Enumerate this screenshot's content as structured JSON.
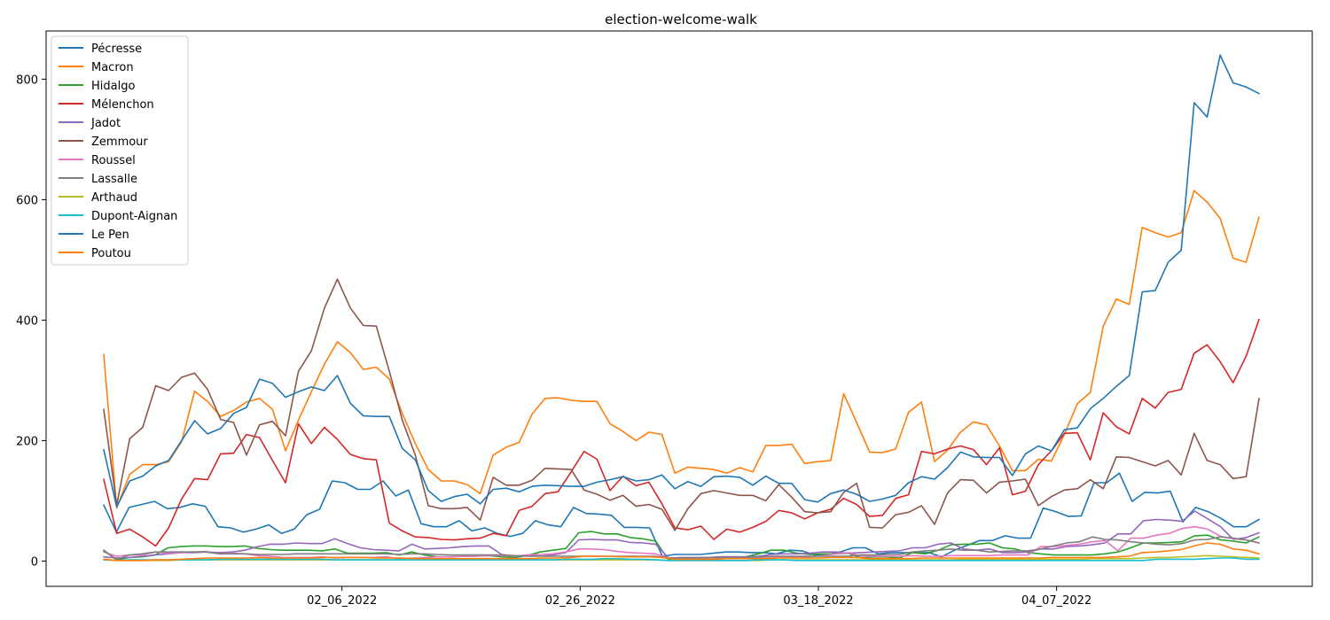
{
  "chart_data": {
    "type": "line",
    "title": "election-welcome-walk",
    "xlabel": "",
    "ylabel": "",
    "x_start": "01_17_2022",
    "x_end": "04_24_2022",
    "x_ticks": [
      {
        "value": "02_06_2022",
        "label": "02_06_2022"
      },
      {
        "value": "02_26_2022",
        "label": "02_26_2022"
      },
      {
        "value": "03_18_2022",
        "label": "03_18_2022"
      },
      {
        "value": "04_07_2022",
        "label": "04_07_2022"
      }
    ],
    "ylim": [
      -42,
      880
    ],
    "y_ticks": [
      0,
      200,
      400,
      600,
      800
    ],
    "grid": false,
    "legend_position": "top-left",
    "series": [
      {
        "name": "Pécresse",
        "color": "#1f77b4",
        "values": [
          93,
          48,
          89,
          94,
          99,
          87,
          89,
          95,
          91,
          57,
          55,
          48,
          53,
          60,
          46,
          53,
          77,
          86,
          133,
          130,
          119,
          119,
          133,
          108,
          118,
          62,
          57,
          57,
          67,
          50,
          55,
          46,
          41,
          46,
          67,
          60,
          57,
          89,
          79,
          78,
          76,
          56,
          56,
          55,
          8,
          11,
          11,
          11,
          13,
          15,
          15,
          14,
          14,
          12,
          18,
          17,
          10,
          11,
          15,
          22,
          22,
          12,
          14,
          14,
          14,
          14,
          7,
          18,
          26,
          34,
          34,
          42,
          38,
          38,
          88,
          82,
          74,
          75,
          130,
          130,
          146,
          99,
          114,
          113,
          116,
          65,
          89,
          82,
          71,
          57,
          57,
          69
        ]
      },
      {
        "name": "Macron",
        "color": "#ff7f0e",
        "values": [
          343,
          88,
          144,
          160,
          160,
          165,
          198,
          282,
          265,
          240,
          250,
          264,
          270,
          252,
          183,
          234,
          281,
          327,
          364,
          346,
          318,
          322,
          302,
          245,
          195,
          152,
          133,
          133,
          127,
          112,
          176,
          189,
          197,
          244,
          270,
          271,
          267,
          265,
          265,
          228,
          215,
          200,
          214,
          210,
          146,
          156,
          154,
          152,
          146,
          155,
          148,
          192,
          192,
          194,
          162,
          165,
          167,
          278,
          230,
          181,
          180,
          186,
          247,
          264,
          165,
          184,
          214,
          231,
          226,
          191,
          150,
          150,
          169,
          166,
          210,
          261,
          280,
          390,
          435,
          426,
          554,
          545,
          538,
          545,
          615,
          596,
          569,
          503,
          496,
          571
        ]
      },
      {
        "name": "Hidalgo",
        "color": "#2ca02c",
        "values": [
          18,
          2,
          6,
          7,
          10,
          22,
          24,
          25,
          25,
          24,
          24,
          25,
          21,
          19,
          18,
          18,
          18,
          17,
          20,
          13,
          13,
          13,
          14,
          10,
          15,
          10,
          7,
          7,
          8,
          8,
          9,
          7,
          6,
          9,
          15,
          18,
          21,
          47,
          49,
          45,
          45,
          39,
          37,
          33,
          2,
          2,
          2,
          5,
          7,
          7,
          7,
          12,
          18,
          18,
          13,
          11,
          12,
          12,
          13,
          5,
          7,
          7,
          5,
          14,
          12,
          18,
          27,
          28,
          28,
          30,
          22,
          20,
          14,
          12,
          10,
          10,
          10,
          10,
          12,
          15,
          22,
          30,
          30,
          31,
          32,
          42,
          43,
          35,
          33,
          30,
          40
        ]
      },
      {
        "name": "Mélenchon",
        "color": "#d62728",
        "values": [
          136,
          46,
          53,
          40,
          25,
          55,
          103,
          137,
          135,
          178,
          179,
          210,
          205,
          167,
          130,
          228,
          195,
          222,
          202,
          177,
          170,
          168,
          63,
          50,
          40,
          39,
          36,
          35,
          37,
          38,
          46,
          42,
          84,
          91,
          112,
          115,
          148,
          182,
          169,
          117,
          141,
          125,
          131,
          95,
          55,
          52,
          58,
          36,
          53,
          48,
          56,
          66,
          84,
          80,
          70,
          80,
          86,
          104,
          94,
          74,
          76,
          104,
          110,
          182,
          178,
          186,
          191,
          185,
          160,
          188,
          110,
          116,
          160,
          183,
          212,
          213,
          168,
          246,
          223,
          211,
          270,
          254,
          280,
          285,
          345,
          359,
          331,
          296,
          340,
          401
        ]
      },
      {
        "name": "Jadot",
        "color": "#9467bd",
        "values": [
          7,
          5,
          6,
          8,
          10,
          12,
          14,
          14,
          15,
          14,
          15,
          18,
          24,
          28,
          28,
          30,
          29,
          29,
          37,
          29,
          22,
          19,
          18,
          17,
          28,
          20,
          21,
          22,
          24,
          25,
          25,
          11,
          8,
          10,
          8,
          10,
          14,
          35,
          36,
          35,
          35,
          31,
          30,
          28,
          5,
          6,
          6,
          6,
          7,
          7,
          7,
          8,
          11,
          12,
          12,
          13,
          15,
          15,
          13,
          14,
          15,
          16,
          17,
          22,
          22,
          28,
          30,
          20,
          18,
          20,
          14,
          14,
          15,
          20,
          20,
          24,
          25,
          27,
          30,
          45,
          45,
          67,
          69,
          68,
          66,
          83,
          70,
          57,
          36,
          39,
          47
        ]
      },
      {
        "name": "Zemmour",
        "color": "#8c564b",
        "values": [
          252,
          93,
          203,
          222,
          291,
          283,
          305,
          312,
          285,
          235,
          230,
          176,
          226,
          232,
          208,
          315,
          349,
          420,
          468,
          420,
          391,
          390,
          315,
          234,
          176,
          92,
          87,
          87,
          89,
          68,
          139,
          126,
          126,
          134,
          154,
          153,
          152,
          118,
          111,
          101,
          109,
          91,
          94,
          86,
          51,
          87,
          112,
          117,
          113,
          109,
          109,
          100,
          127,
          106,
          82,
          80,
          82,
          114,
          129,
          56,
          55,
          77,
          81,
          92,
          61,
          113,
          135,
          134,
          113,
          131,
          133,
          136,
          92,
          107,
          118,
          120,
          135,
          120,
          173,
          172,
          165,
          158,
          167,
          143,
          212,
          167,
          160,
          137,
          140,
          270
        ]
      },
      {
        "name": "Roussel",
        "color": "#e377c2",
        "values": [
          15,
          8,
          10,
          10,
          15,
          13,
          14,
          15,
          16,
          12,
          13,
          12,
          9,
          8,
          6,
          6,
          6,
          7,
          5,
          6,
          6,
          6,
          7,
          4,
          5,
          6,
          7,
          7,
          8,
          8,
          9,
          9,
          8,
          10,
          11,
          12,
          15,
          20,
          20,
          19,
          16,
          14,
          13,
          12,
          5,
          4,
          4,
          4,
          5,
          5,
          5,
          6,
          7,
          7,
          6,
          7,
          9,
          12,
          14,
          8,
          8,
          8,
          8,
          9,
          8,
          8,
          9,
          9,
          9,
          9,
          10,
          10,
          10,
          24,
          24,
          26,
          28,
          32,
          34,
          17,
          38,
          38,
          43,
          46,
          54,
          57,
          53,
          41,
          37,
          35,
          30
        ]
      },
      {
        "name": "Lassalle",
        "color": "#7f7f7f",
        "values": [
          17,
          3,
          10,
          12,
          15,
          15,
          15,
          15,
          15,
          12,
          12,
          12,
          11,
          11,
          11,
          12,
          12,
          12,
          12,
          12,
          12,
          12,
          12,
          11,
          12,
          12,
          11,
          10,
          10,
          10,
          10,
          10,
          9,
          8,
          8,
          8,
          8,
          8,
          8,
          8,
          8,
          8,
          8,
          8,
          5,
          5,
          5,
          6,
          6,
          6,
          6,
          7,
          8,
          8,
          8,
          8,
          8,
          8,
          8,
          10,
          10,
          11,
          11,
          15,
          17,
          18,
          20,
          18,
          18,
          15,
          16,
          17,
          17,
          20,
          25,
          30,
          32,
          40,
          36,
          35,
          32,
          30,
          28,
          27,
          29,
          35,
          36,
          40,
          38,
          35,
          30
        ]
      },
      {
        "name": "Arthaud",
        "color": "#bcbd22",
        "values": [
          3,
          1,
          1,
          1,
          1,
          1,
          2,
          2,
          2,
          2,
          2,
          2,
          2,
          2,
          2,
          2,
          2,
          2,
          2,
          2,
          2,
          2,
          2,
          2,
          2,
          2,
          2,
          2,
          2,
          2,
          2,
          2,
          2,
          2,
          2,
          2,
          2,
          2,
          2,
          2,
          2,
          2,
          2,
          2,
          1,
          1,
          1,
          1,
          1,
          1,
          1,
          1,
          2,
          2,
          2,
          2,
          2,
          2,
          2,
          2,
          2,
          2,
          2,
          2,
          2,
          2,
          2,
          3,
          3,
          3,
          3,
          3,
          3,
          3,
          3,
          3,
          3,
          4,
          4,
          4,
          4,
          5,
          6,
          6,
          7,
          8,
          9,
          8,
          7,
          6,
          5
        ]
      },
      {
        "name": "Dupont-Aignan",
        "color": "#17becf",
        "values": [
          2,
          1,
          2,
          2,
          2,
          2,
          2,
          2,
          2,
          3,
          3,
          3,
          3,
          3,
          3,
          3,
          3,
          3,
          2,
          2,
          2,
          2,
          2,
          2,
          2,
          2,
          2,
          2,
          2,
          2,
          2,
          2,
          2,
          2,
          2,
          2,
          3,
          3,
          3,
          4,
          4,
          3,
          3,
          2,
          1,
          1,
          1,
          1,
          1,
          1,
          1,
          2,
          2,
          2,
          1,
          1,
          1,
          1,
          1,
          1,
          1,
          1,
          1,
          1,
          1,
          1,
          1,
          1,
          1,
          1,
          1,
          1,
          1,
          1,
          1,
          1,
          1,
          1,
          1,
          1,
          1,
          1,
          3,
          3,
          3,
          3,
          4,
          5,
          5,
          3,
          3
        ]
      },
      {
        "name": "Le Pen",
        "color": "#1f77b4",
        "values": [
          185,
          90,
          133,
          141,
          158,
          167,
          200,
          233,
          211,
          220,
          245,
          255,
          302,
          295,
          272,
          281,
          289,
          283,
          308,
          262,
          241,
          240,
          240,
          187,
          168,
          117,
          99,
          107,
          111,
          95,
          119,
          121,
          115,
          124,
          126,
          125,
          124,
          124,
          131,
          135,
          140,
          133,
          135,
          143,
          120,
          132,
          124,
          140,
          141,
          139,
          126,
          141,
          129,
          129,
          102,
          98,
          112,
          118,
          111,
          99,
          103,
          109,
          130,
          140,
          136,
          155,
          181,
          173,
          172,
          172,
          142,
          178,
          191,
          183,
          218,
          221,
          253,
          270,
          290,
          308,
          447,
          449,
          496,
          516,
          761,
          737,
          840,
          794,
          787,
          776
        ]
      },
      {
        "name": "Poutou",
        "color": "#ff7f0e",
        "values": [
          3,
          1,
          1,
          1,
          2,
          2,
          3,
          4,
          5,
          5,
          5,
          5,
          6,
          5,
          5,
          5,
          5,
          6,
          6,
          6,
          6,
          5,
          5,
          5,
          4,
          4,
          4,
          4,
          4,
          4,
          4,
          4,
          4,
          4,
          5,
          5,
          6,
          8,
          8,
          8,
          7,
          7,
          7,
          6,
          3,
          3,
          3,
          3,
          4,
          4,
          4,
          4,
          5,
          5,
          5,
          5,
          6,
          6,
          6,
          4,
          4,
          4,
          4,
          5,
          5,
          5,
          5,
          5,
          5,
          5,
          5,
          5,
          5,
          6,
          6,
          6,
          6,
          6,
          7,
          8,
          14,
          15,
          17,
          19,
          25,
          30,
          28,
          20,
          18,
          12
        ]
      }
    ]
  }
}
